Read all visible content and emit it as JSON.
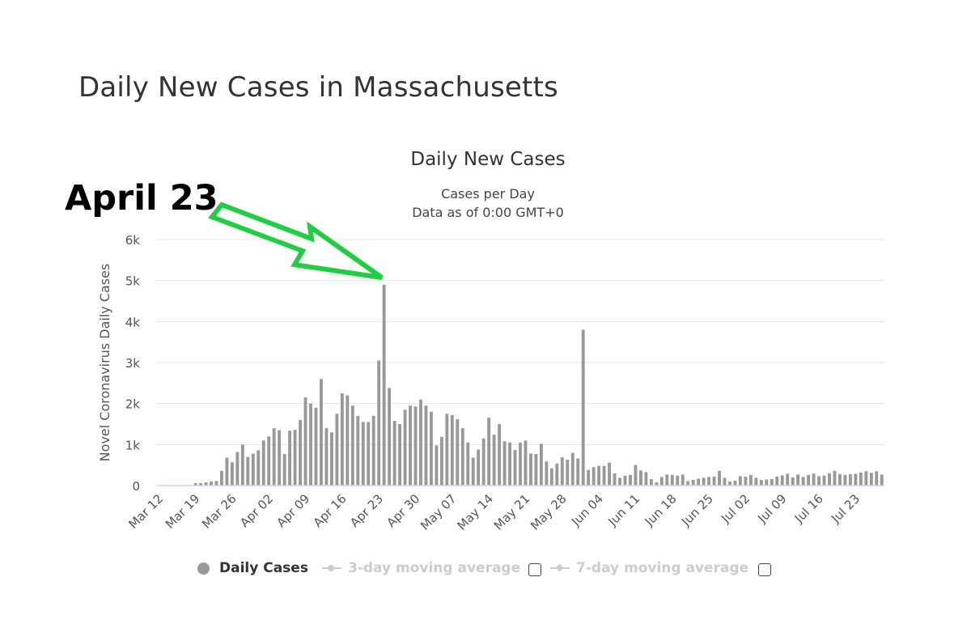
{
  "page": {
    "title": "Daily New Cases in Massachusetts",
    "annotation": "April 23"
  },
  "chart_data": {
    "type": "bar",
    "title": "Daily New Cases",
    "subtitle_lines": [
      "Cases per Day",
      "Data as of 0:00 GMT+0"
    ],
    "ylabel": "Novel Coronavirus Daily Cases",
    "xlabel": "",
    "ylim": [
      0,
      6000
    ],
    "y_ticks": [
      0,
      1000,
      2000,
      3000,
      4000,
      5000,
      6000
    ],
    "y_tick_labels": [
      "0",
      "1k",
      "2k",
      "3k",
      "4k",
      "5k",
      "6k"
    ],
    "x_tick_labels": [
      "Mar 12",
      "Mar 19",
      "Mar 26",
      "Apr 02",
      "Apr 09",
      "Apr 16",
      "Apr 23",
      "Apr 30",
      "May 07",
      "May 14",
      "May 21",
      "May 28",
      "Jun 04",
      "Jun 11",
      "Jun 18",
      "Jun 25",
      "Jul 02",
      "Jul 09",
      "Jul 16",
      "Jul 23"
    ],
    "grid": true,
    "legend_position": "bottom",
    "bar_color": "#999999",
    "annotation_color": "#22cc44",
    "series": [
      {
        "name": "Daily Cases",
        "start_date": "Mar 12",
        "values": [
          0,
          0,
          0,
          0,
          0,
          0,
          0,
          60,
          60,
          80,
          100,
          110,
          360,
          680,
          570,
          820,
          1000,
          700,
          780,
          860,
          1100,
          1200,
          1400,
          1350,
          770,
          1340,
          1360,
          1600,
          2150,
          2000,
          1900,
          2600,
          1400,
          1300,
          1750,
          2250,
          2200,
          1950,
          1700,
          1550,
          1550,
          1700,
          3050,
          4900,
          2380,
          1580,
          1500,
          1850,
          1950,
          1930,
          2100,
          1950,
          1800,
          980,
          1190,
          1750,
          1720,
          1620,
          1400,
          1050,
          680,
          880,
          1150,
          1660,
          1240,
          1500,
          1080,
          1050,
          870,
          1050,
          1100,
          780,
          770,
          1020,
          590,
          420,
          540,
          690,
          630,
          800,
          660,
          3800,
          380,
          450,
          480,
          480,
          560,
          300,
          190,
          240,
          260,
          500,
          370,
          330,
          160,
          80,
          210,
          270,
          260,
          240,
          270,
          110,
          140,
          170,
          190,
          210,
          220,
          360,
          190,
          100,
          120,
          230,
          220,
          260,
          190,
          140,
          150,
          160,
          220,
          250,
          290,
          200,
          270,
          210,
          260,
          290,
          230,
          240,
          300,
          360,
          280,
          260,
          280,
          290,
          320,
          350,
          310,
          350,
          270
        ]
      },
      {
        "name": "3-day moving average",
        "visible": false
      },
      {
        "name": "7-day moving average",
        "visible": false
      }
    ]
  }
}
